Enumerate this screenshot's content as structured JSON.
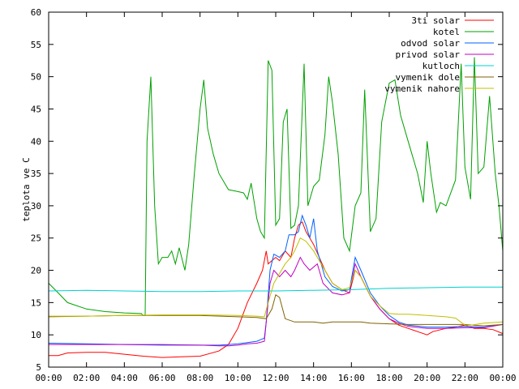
{
  "chart_data": {
    "type": "line",
    "title": "",
    "xlabel": "",
    "ylabel": "teplota ve C",
    "ylim": [
      5,
      60
    ],
    "xlim_hours": [
      0,
      24
    ],
    "grid": false,
    "legend_position": "top-right",
    "y_ticks": [
      "5",
      "10",
      "15",
      "20",
      "25",
      "30",
      "35",
      "40",
      "45",
      "50",
      "55",
      "60"
    ],
    "x_ticks": [
      "00:00",
      "02:00",
      "04:00",
      "06:00",
      "08:00",
      "10:00",
      "12:00",
      "14:00",
      "16:00",
      "18:00",
      "20:00",
      "22:00",
      "00:00"
    ],
    "series": [
      {
        "name": "3ti solar",
        "color": "#ff0000",
        "points": [
          [
            0,
            6.8
          ],
          [
            0.5,
            6.8
          ],
          [
            1,
            7.2
          ],
          [
            2,
            7.3
          ],
          [
            3,
            7.3
          ],
          [
            4,
            7.0
          ],
          [
            5,
            6.7
          ],
          [
            6,
            6.5
          ],
          [
            7,
            6.6
          ],
          [
            8,
            6.7
          ],
          [
            9,
            7.5
          ],
          [
            9.5,
            8.5
          ],
          [
            10,
            11
          ],
          [
            10.5,
            15
          ],
          [
            11,
            18
          ],
          [
            11.3,
            20
          ],
          [
            11.5,
            23
          ],
          [
            11.6,
            21
          ],
          [
            11.8,
            21.5
          ],
          [
            12,
            22
          ],
          [
            12.2,
            21.5
          ],
          [
            12.5,
            23
          ],
          [
            12.8,
            22
          ],
          [
            13,
            25
          ],
          [
            13.2,
            27
          ],
          [
            13.4,
            27.5
          ],
          [
            13.6,
            26
          ],
          [
            13.8,
            25
          ],
          [
            14,
            24
          ],
          [
            14.3,
            22
          ],
          [
            14.6,
            20
          ],
          [
            15,
            18
          ],
          [
            15.5,
            17
          ],
          [
            15.9,
            16.5
          ],
          [
            16.2,
            20
          ],
          [
            16.5,
            19
          ],
          [
            17,
            16
          ],
          [
            17.5,
            14
          ],
          [
            18,
            12.5
          ],
          [
            18.5,
            11.5
          ],
          [
            19,
            11
          ],
          [
            19.5,
            10.5
          ],
          [
            20,
            10.0
          ],
          [
            20.3,
            10.5
          ],
          [
            21,
            11
          ],
          [
            21.5,
            11.2
          ],
          [
            22,
            11.5
          ],
          [
            22.5,
            11
          ],
          [
            23,
            11
          ],
          [
            23.5,
            10.8
          ],
          [
            24,
            10.2
          ]
        ]
      },
      {
        "name": "kotel",
        "color": "#00a000",
        "points": [
          [
            0,
            18
          ],
          [
            0.5,
            16.5
          ],
          [
            1,
            15
          ],
          [
            2,
            14
          ],
          [
            3,
            13.6
          ],
          [
            4,
            13.4
          ],
          [
            4.9,
            13.3
          ],
          [
            5,
            13
          ],
          [
            5.1,
            13
          ],
          [
            5.2,
            40
          ],
          [
            5.4,
            50
          ],
          [
            5.6,
            30
          ],
          [
            5.8,
            21
          ],
          [
            6,
            22
          ],
          [
            6.3,
            22
          ],
          [
            6.5,
            23
          ],
          [
            6.7,
            21
          ],
          [
            6.9,
            23.5
          ],
          [
            7.2,
            20
          ],
          [
            7.4,
            24
          ],
          [
            7.7,
            35
          ],
          [
            8,
            45
          ],
          [
            8.2,
            49.5
          ],
          [
            8.4,
            42
          ],
          [
            8.7,
            38
          ],
          [
            9,
            35
          ],
          [
            9.5,
            32.5
          ],
          [
            10,
            32.2
          ],
          [
            10.3,
            32
          ],
          [
            10.5,
            31
          ],
          [
            10.7,
            33.5
          ],
          [
            11,
            28
          ],
          [
            11.2,
            26
          ],
          [
            11.4,
            25
          ],
          [
            11.6,
            52.5
          ],
          [
            11.8,
            51
          ],
          [
            12,
            27
          ],
          [
            12.2,
            28
          ],
          [
            12.4,
            43
          ],
          [
            12.6,
            45
          ],
          [
            12.8,
            26.5
          ],
          [
            13,
            27
          ],
          [
            13.2,
            30
          ],
          [
            13.5,
            52
          ],
          [
            13.7,
            30
          ],
          [
            14,
            33
          ],
          [
            14.3,
            34
          ],
          [
            14.6,
            41
          ],
          [
            14.8,
            50
          ],
          [
            15,
            46
          ],
          [
            15.3,
            38
          ],
          [
            15.6,
            25
          ],
          [
            15.9,
            23
          ],
          [
            16.2,
            30
          ],
          [
            16.5,
            32
          ],
          [
            16.7,
            48
          ],
          [
            17,
            26
          ],
          [
            17.3,
            28
          ],
          [
            17.6,
            43
          ],
          [
            17.8,
            46
          ],
          [
            18,
            49
          ],
          [
            18.3,
            49.5
          ],
          [
            18.6,
            44
          ],
          [
            19,
            40
          ],
          [
            19.5,
            35
          ],
          [
            19.8,
            30.5
          ],
          [
            20,
            40
          ],
          [
            20.2,
            35
          ],
          [
            20.5,
            29
          ],
          [
            20.7,
            30.5
          ],
          [
            21,
            30
          ],
          [
            21.5,
            34
          ],
          [
            21.8,
            52
          ],
          [
            22,
            36
          ],
          [
            22.3,
            31
          ],
          [
            22.5,
            53
          ],
          [
            22.7,
            35
          ],
          [
            23,
            36
          ],
          [
            23.3,
            47
          ],
          [
            23.6,
            35
          ],
          [
            23.8,
            30
          ],
          [
            24,
            23
          ]
        ]
      },
      {
        "name": "odvod solar",
        "color": "#0060ff",
        "points": [
          [
            0,
            8.7
          ],
          [
            2,
            8.6
          ],
          [
            4,
            8.5
          ],
          [
            6,
            8.4
          ],
          [
            8,
            8.4
          ],
          [
            9,
            8.4
          ],
          [
            9.5,
            8.5
          ],
          [
            10,
            8.6
          ],
          [
            10.5,
            8.8
          ],
          [
            11,
            9
          ],
          [
            11.4,
            9.5
          ],
          [
            11.5,
            12
          ],
          [
            11.7,
            20
          ],
          [
            11.9,
            22.5
          ],
          [
            12.2,
            22
          ],
          [
            12.5,
            23
          ],
          [
            12.7,
            25.5
          ],
          [
            13,
            25.5
          ],
          [
            13.2,
            26
          ],
          [
            13.4,
            28.5
          ],
          [
            13.6,
            27
          ],
          [
            13.8,
            25
          ],
          [
            14,
            28
          ],
          [
            14.2,
            23
          ],
          [
            14.6,
            19
          ],
          [
            15,
            17.5
          ],
          [
            15.5,
            16.8
          ],
          [
            15.9,
            17
          ],
          [
            16.2,
            22
          ],
          [
            16.5,
            20
          ],
          [
            17,
            16.5
          ],
          [
            17.5,
            14.5
          ],
          [
            18,
            13
          ],
          [
            18.5,
            12
          ],
          [
            19,
            11.5
          ],
          [
            20,
            11.2
          ],
          [
            21,
            11.2
          ],
          [
            22,
            11.3
          ],
          [
            23,
            11.2
          ],
          [
            24,
            11.6
          ]
        ]
      },
      {
        "name": "privod solar",
        "color": "#c000c0",
        "points": [
          [
            0,
            8.5
          ],
          [
            2,
            8.5
          ],
          [
            4,
            8.5
          ],
          [
            6,
            8.5
          ],
          [
            8,
            8.4
          ],
          [
            9,
            8.3
          ],
          [
            9.5,
            8.3
          ],
          [
            10,
            8.4
          ],
          [
            10.5,
            8.6
          ],
          [
            11,
            8.7
          ],
          [
            11.4,
            9
          ],
          [
            11.5,
            12
          ],
          [
            11.7,
            18
          ],
          [
            11.9,
            20
          ],
          [
            12.2,
            19
          ],
          [
            12.5,
            20
          ],
          [
            12.8,
            19
          ],
          [
            13,
            20
          ],
          [
            13.3,
            22
          ],
          [
            13.5,
            21
          ],
          [
            13.8,
            20
          ],
          [
            14.2,
            21
          ],
          [
            14.5,
            18
          ],
          [
            15,
            16.5
          ],
          [
            15.5,
            16.2
          ],
          [
            15.9,
            16.5
          ],
          [
            16.2,
            21
          ],
          [
            16.5,
            19
          ],
          [
            17,
            16
          ],
          [
            17.5,
            14
          ],
          [
            18,
            12.5
          ],
          [
            18.5,
            11.8
          ],
          [
            19,
            11.3
          ],
          [
            20,
            11.0
          ],
          [
            21,
            11.0
          ],
          [
            22,
            11.1
          ],
          [
            23,
            11.1
          ],
          [
            24,
            11.6
          ]
        ]
      },
      {
        "name": "kutloch",
        "color": "#00d0d0",
        "points": [
          [
            0,
            16.8
          ],
          [
            2,
            16.9
          ],
          [
            4,
            16.8
          ],
          [
            6,
            16.7
          ],
          [
            8,
            16.7
          ],
          [
            10,
            16.8
          ],
          [
            12,
            16.8
          ],
          [
            14,
            16.9
          ],
          [
            16,
            17.0
          ],
          [
            18,
            17.2
          ],
          [
            20,
            17.3
          ],
          [
            22,
            17.4
          ],
          [
            24,
            17.4
          ]
        ]
      },
      {
        "name": "vymenik dole",
        "color": "#806000",
        "points": [
          [
            0,
            12.8
          ],
          [
            2,
            12.9
          ],
          [
            4,
            13
          ],
          [
            6,
            13
          ],
          [
            8,
            13
          ],
          [
            10,
            12.8
          ],
          [
            11,
            12.7
          ],
          [
            11.5,
            12.5
          ],
          [
            11.8,
            14
          ],
          [
            12,
            16.2
          ],
          [
            12.2,
            15.8
          ],
          [
            12.5,
            12.5
          ],
          [
            13,
            12
          ],
          [
            14,
            12
          ],
          [
            14.5,
            11.8
          ],
          [
            15,
            12
          ],
          [
            16,
            12
          ],
          [
            16.5,
            12
          ],
          [
            17,
            11.8
          ],
          [
            18,
            11.7
          ],
          [
            19,
            11.6
          ],
          [
            20,
            11.6
          ],
          [
            21,
            11.6
          ],
          [
            22,
            11.6
          ],
          [
            22.5,
            11.5
          ],
          [
            23,
            11.4
          ],
          [
            24,
            11.6
          ]
        ]
      },
      {
        "name": "vymenik nahore",
        "color": "#c0c000",
        "points": [
          [
            0,
            12.9
          ],
          [
            2,
            12.9
          ],
          [
            4,
            13.0
          ],
          [
            6,
            13.1
          ],
          [
            8,
            13.1
          ],
          [
            10,
            13.0
          ],
          [
            11,
            12.9
          ],
          [
            11.4,
            12.8
          ],
          [
            11.6,
            15
          ],
          [
            11.9,
            18
          ],
          [
            12.2,
            19.5
          ],
          [
            12.5,
            21
          ],
          [
            12.8,
            22
          ],
          [
            13,
            23
          ],
          [
            13.3,
            25
          ],
          [
            13.6,
            24.5
          ],
          [
            14,
            23
          ],
          [
            14.4,
            21
          ],
          [
            15,
            18
          ],
          [
            15.5,
            17
          ],
          [
            15.9,
            17.3
          ],
          [
            16.2,
            20
          ],
          [
            16.5,
            19
          ],
          [
            17,
            16
          ],
          [
            17.5,
            14.5
          ],
          [
            18,
            13.3
          ],
          [
            18.5,
            13.2
          ],
          [
            19,
            13.2
          ],
          [
            20,
            13
          ],
          [
            21,
            12.8
          ],
          [
            21.5,
            12.6
          ],
          [
            22,
            11.5
          ],
          [
            22.3,
            11.5
          ],
          [
            23,
            11.8
          ],
          [
            24,
            12
          ]
        ]
      }
    ]
  }
}
